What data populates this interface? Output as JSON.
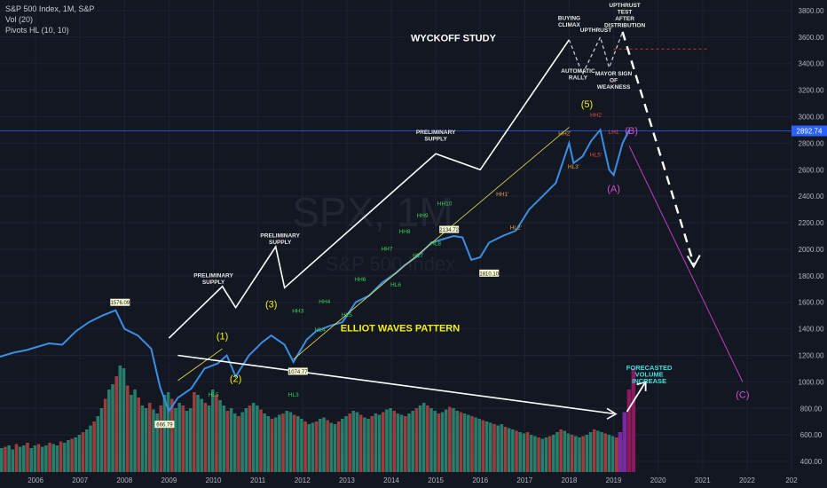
{
  "legend": {
    "symbol": "S&P 500 Index, 1M, S&P",
    "volume": "Vol (20)",
    "pivots": "Pivots HL (10, 10)"
  },
  "watermark": {
    "symbol": "SPX, 1M",
    "name": "S&P 500 Index"
  },
  "colors": {
    "background": "#131722",
    "price_line": "#3a8ee6",
    "vol_up": "#2a8a74",
    "vol_down": "#b23f3f",
    "vol_forecast": "#8b1a5c",
    "wyckoff": "#ffffff",
    "wave_label": "#f4f018",
    "abc_label": "#d44fd4",
    "pivot_high_green": "#39d353",
    "pivot_orange": "#e8a33a",
    "current_price_line": "#2962ff"
  },
  "chart_data": {
    "type": "line",
    "title": "",
    "xlabel": "",
    "ylabel": "",
    "x_ticks": [
      "2006",
      "2007",
      "2008",
      "2009",
      "2010",
      "2011",
      "2012",
      "2013",
      "2014",
      "2015",
      "2016",
      "2017",
      "2018",
      "2019",
      "2020",
      "2021",
      "2022",
      "202"
    ],
    "y_ticks": [
      400,
      600,
      800,
      1000,
      1200,
      1400,
      1600,
      1800,
      2000,
      2200,
      2400,
      2600,
      2800,
      3000,
      3200,
      3400,
      3600,
      3800
    ],
    "ylim": [
      320,
      3880
    ],
    "xlim": [
      2005.2,
      2023.0
    ],
    "current_price": 2892.74,
    "series": [
      {
        "values_x": [
          2005.2,
          2005.5,
          2005.8,
          2006.0,
          2006.3,
          2006.6,
          2006.9,
          2007.2,
          2007.5,
          2007.8,
          2008.0,
          2008.3,
          2008.6,
          2008.8,
          2009.0,
          2009.2,
          2009.5,
          2009.8,
          2010.1,
          2010.3,
          2010.5,
          2010.8,
          2011.1,
          2011.3,
          2011.6,
          2011.8,
          2012.1,
          2012.3,
          2012.6,
          2012.9,
          2013.2,
          2013.5,
          2013.8,
          2014.1,
          2014.3,
          2014.6,
          2014.9,
          2015.2,
          2015.4,
          2015.6,
          2015.8,
          2016.0,
          2016.2,
          2016.5,
          2016.8,
          2017.1,
          2017.4,
          2017.7,
          2018.0,
          2018.1,
          2018.3,
          2018.5,
          2018.7,
          2018.9,
          2019.0,
          2019.2,
          2019.35
        ],
        "values_y": [
          1190,
          1220,
          1240,
          1260,
          1290,
          1280,
          1380,
          1450,
          1500,
          1540,
          1400,
          1350,
          1250,
          960,
          780,
          880,
          950,
          1100,
          1140,
          1200,
          1040,
          1200,
          1300,
          1350,
          1280,
          1150,
          1320,
          1380,
          1420,
          1450,
          1600,
          1650,
          1750,
          1820,
          1880,
          1950,
          2050,
          2080,
          2100,
          2090,
          1920,
          1940,
          2050,
          2100,
          2140,
          2300,
          2400,
          2500,
          2800,
          2650,
          2700,
          2820,
          2900,
          2600,
          2560,
          2800,
          2900
        ]
      }
    ],
    "volume": {
      "values_x_start": 2005.2,
      "values_x_step": 0.0833,
      "heights": [
        0.18,
        0.19,
        0.2,
        0.17,
        0.21,
        0.19,
        0.2,
        0.22,
        0.18,
        0.2,
        0.21,
        0.19,
        0.2,
        0.22,
        0.21,
        0.2,
        0.23,
        0.22,
        0.24,
        0.25,
        0.26,
        0.28,
        0.3,
        0.32,
        0.35,
        0.38,
        0.42,
        0.48,
        0.55,
        0.62,
        0.66,
        0.72,
        0.8,
        0.78,
        0.65,
        0.58,
        0.62,
        0.56,
        0.5,
        0.48,
        0.52,
        0.47,
        0.44,
        0.5,
        0.58,
        0.6,
        0.55,
        0.48,
        0.52,
        0.5,
        0.46,
        0.48,
        0.6,
        0.58,
        0.55,
        0.52,
        0.5,
        0.62,
        0.58,
        0.54,
        0.5,
        0.46,
        0.48,
        0.44,
        0.42,
        0.45,
        0.48,
        0.5,
        0.52,
        0.5,
        0.47,
        0.44,
        0.42,
        0.4,
        0.41,
        0.43,
        0.44,
        0.46,
        0.45,
        0.43,
        0.42,
        0.4,
        0.38,
        0.36,
        0.37,
        0.38,
        0.4,
        0.41,
        0.39,
        0.37,
        0.36,
        0.38,
        0.4,
        0.42,
        0.44,
        0.46,
        0.45,
        0.43,
        0.41,
        0.4,
        0.42,
        0.44,
        0.43,
        0.45,
        0.47,
        0.48,
        0.46,
        0.44,
        0.43,
        0.42,
        0.44,
        0.46,
        0.48,
        0.5,
        0.52,
        0.5,
        0.48,
        0.46,
        0.44,
        0.45,
        0.47,
        0.49,
        0.48,
        0.46,
        0.45,
        0.44,
        0.43,
        0.42,
        0.41,
        0.4,
        0.39,
        0.38,
        0.37,
        0.36,
        0.35,
        0.36,
        0.34,
        0.33,
        0.32,
        0.31,
        0.3,
        0.29,
        0.3,
        0.28,
        0.27,
        0.26,
        0.25,
        0.26,
        0.27,
        0.28,
        0.3,
        0.32,
        0.31,
        0.29,
        0.28,
        0.27,
        0.26,
        0.27,
        0.28,
        0.3,
        0.32,
        0.31,
        0.3,
        0.29,
        0.28,
        0.27,
        0.26,
        0.25,
        0.24,
        0.26,
        0.28,
        0.3,
        0.29,
        0.28,
        0.27,
        0.26,
        0.25,
        0.24,
        0.23,
        0.24,
        0.25,
        0.26,
        0.28,
        0.27,
        0.26,
        0.25,
        0.24,
        0.23,
        0.22,
        0.24,
        0.26,
        0.28,
        0.3,
        0.28,
        0.26,
        0.24,
        0.23,
        0.22,
        0.21,
        0.2,
        0.22,
        0.24,
        0.26,
        0.28,
        0.27,
        0.25,
        0.24,
        0.23,
        0.22,
        0.21,
        0.2,
        0.19,
        0.21,
        0.23,
        0.25,
        0.24,
        0.23,
        0.22,
        0.21,
        0.2,
        0.19,
        0.18
      ],
      "forecast_heights": [
        0.3,
        0.45,
        0.62,
        0.78
      ]
    }
  },
  "annotations": {
    "wyckoff_title": "WYCKOFF STUDY",
    "elliot_title": "ELLIOT WAVES PATTERN",
    "buying_climax": [
      "BUYING",
      "CLIMAX"
    ],
    "upthrust": "UPTHRUST",
    "upthrust_test": [
      "UPTHRUST",
      "TEST",
      "AFTER",
      "DISTRIBUTION"
    ],
    "automatic_rally": [
      "AUTOMATIC",
      "RALLY"
    ],
    "major_sign": [
      "MAYOR SIGN",
      "OF",
      "WEAKNESS"
    ],
    "prelim_supply": [
      "PRELIMINARY",
      "SUPPLY"
    ],
    "forecast_volume": [
      "FORECASTED",
      "VOLUME",
      "INCREASE"
    ],
    "waves": [
      "(1)",
      "(2)",
      "(3)",
      "(5)"
    ],
    "abc": [
      "(A)",
      "(B)",
      "(C)"
    ],
    "pivot_boxes": [
      "1576.09",
      "666.79",
      "1074.77",
      "2134.72",
      "1810.10"
    ],
    "pivot_labels_green": [
      "HH3",
      "HH4",
      "HH6",
      "HH7",
      "HH8",
      "HH9",
      "HH10",
      "HL4",
      "HL5",
      "HL6",
      "HL7",
      "HL8",
      "HL3",
      "HL5",
      "HH2'",
      "HL3'",
      "HL1'",
      "HL4'"
    ],
    "pivot_labels_orange": [
      "HH1'",
      "HL2'",
      "HH2'",
      "HL3'"
    ],
    "pivot_labels_red": [
      "HH2",
      "HL5'",
      "LH1"
    ]
  }
}
